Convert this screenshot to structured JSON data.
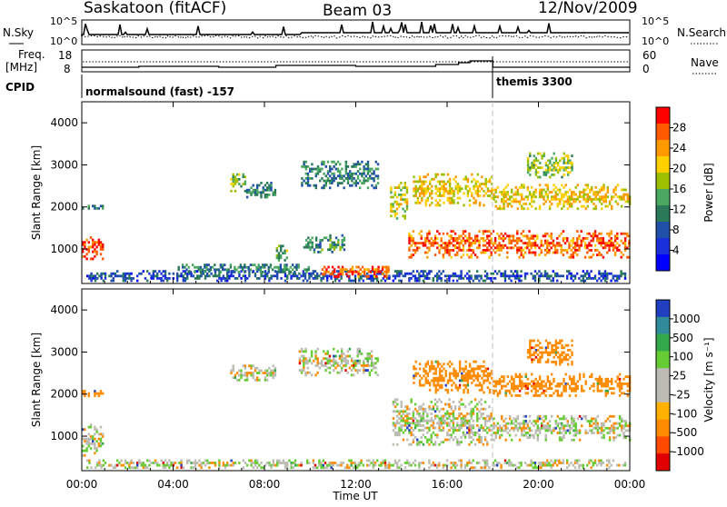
{
  "header": {
    "station": "Saskatoon (fitACF)",
    "beam": "Beam 03",
    "date": "12/Nov/2009"
  },
  "panels": {
    "nsky_label": "N.Sky",
    "nsearch_label": "N.Search",
    "freq_label_1": "Freq.",
    "freq_label_2": "[MHz]",
    "nave_label": "Nave",
    "cpid_label": "CPID",
    "nsky_ticks": [
      "10^5",
      "10^0"
    ],
    "nsearch_ticks": [
      "10^5",
      "10^0"
    ],
    "freq_ticks": [
      "18",
      "8"
    ],
    "nave_ticks": [
      "60",
      "0"
    ],
    "cpid_segments": [
      {
        "label": "normalsound (fast) -157",
        "start_hour": 0,
        "end_hour": 18
      },
      {
        "label": "themis 3300",
        "start_hour": 18,
        "end_hour": 24
      }
    ]
  },
  "colorbars": {
    "power": {
      "label": "Power [dB]",
      "ticks": [
        "28",
        "24",
        "20",
        "16",
        "12",
        "8",
        "4"
      ],
      "colors": [
        "#ff0000",
        "#ff5a00",
        "#ff9900",
        "#ffd000",
        "#9cc000",
        "#4aa860",
        "#2a7a5a",
        "#2050a8",
        "#1a30d8",
        "#0000ff"
      ]
    },
    "velocity": {
      "label": "Velocity [m s⁻¹]",
      "ticks": [
        "1000",
        "500",
        "100",
        "25",
        "-25",
        "-100",
        "-500",
        "-1000"
      ],
      "colors": [
        "#2040c0",
        "#2f8a9a",
        "#33a84a",
        "#66cc33",
        "#bcbcb4",
        "#bcbcb4",
        "#ffb000",
        "#ff8c00",
        "#ff4a00",
        "#e00000"
      ]
    }
  },
  "axes": {
    "ylabel": "Slant Range [km]",
    "xlabel": "Time UT",
    "xticks": [
      "00:00",
      "04:00",
      "08:00",
      "12:00",
      "16:00",
      "20:00",
      "00:00"
    ],
    "yticks": [
      "1000",
      "2000",
      "3000",
      "4000"
    ]
  },
  "chart_data": {
    "type": "heatmap",
    "x_range_hours": [
      0,
      24
    ],
    "y_range_km": [
      180,
      4500
    ],
    "power_patches": [
      {
        "t0": 0.0,
        "t1": 1.0,
        "r0": 750,
        "r1": 1300,
        "level": 28
      },
      {
        "t0": 0.0,
        "t1": 1.0,
        "r0": 1950,
        "r1": 2050,
        "level": 10
      },
      {
        "t0": 0.2,
        "t1": 23.8,
        "r0": 200,
        "r1": 500,
        "level": 6
      },
      {
        "t0": 4.2,
        "t1": 10.0,
        "r0": 450,
        "r1": 650,
        "level": 10
      },
      {
        "t0": 10.5,
        "t1": 13.5,
        "r0": 300,
        "r1": 600,
        "level": 26
      },
      {
        "t0": 6.5,
        "t1": 7.2,
        "r0": 2350,
        "r1": 2800,
        "level": 16
      },
      {
        "t0": 7.2,
        "t1": 8.5,
        "r0": 2200,
        "r1": 2600,
        "level": 10
      },
      {
        "t0": 8.5,
        "t1": 9.0,
        "r0": 700,
        "r1": 1100,
        "level": 14
      },
      {
        "t0": 9.6,
        "t1": 13.0,
        "r0": 2400,
        "r1": 3100,
        "level": 10
      },
      {
        "t0": 9.7,
        "t1": 11.5,
        "r0": 900,
        "r1": 1350,
        "level": 12
      },
      {
        "t0": 13.5,
        "t1": 14.3,
        "r0": 1700,
        "r1": 2600,
        "level": 18
      },
      {
        "t0": 14.3,
        "t1": 24.0,
        "r0": 750,
        "r1": 1450,
        "level": 26
      },
      {
        "t0": 14.5,
        "t1": 18.0,
        "r0": 2000,
        "r1": 2800,
        "level": 20
      },
      {
        "t0": 18.0,
        "t1": 24.0,
        "r0": 1950,
        "r1": 2550,
        "level": 20
      },
      {
        "t0": 19.5,
        "t1": 21.5,
        "r0": 2700,
        "r1": 3300,
        "level": 16
      }
    ],
    "velocity_patches": [
      {
        "t0": 0.0,
        "t1": 1.0,
        "r0": 500,
        "r1": 1300,
        "velocity": 0
      },
      {
        "t0": 0.0,
        "t1": 1.0,
        "r0": 1950,
        "r1": 2100,
        "velocity": -150
      },
      {
        "t0": 0.2,
        "t1": 23.8,
        "r0": 200,
        "r1": 450,
        "velocity": 0
      },
      {
        "t0": 6.5,
        "t1": 8.5,
        "r0": 2300,
        "r1": 2700,
        "velocity": 0
      },
      {
        "t0": 9.5,
        "t1": 13.0,
        "r0": 2400,
        "r1": 3100,
        "velocity": 0
      },
      {
        "t0": 13.6,
        "t1": 18.0,
        "r0": 800,
        "r1": 1900,
        "velocity": 0
      },
      {
        "t0": 14.5,
        "t1": 18.0,
        "r0": 2000,
        "r1": 2800,
        "velocity": -200
      },
      {
        "t0": 18.0,
        "t1": 24.0,
        "r0": 900,
        "r1": 1500,
        "velocity": 0
      },
      {
        "t0": 18.0,
        "t1": 24.0,
        "r0": 1950,
        "r1": 2500,
        "velocity": -150
      },
      {
        "t0": 19.5,
        "t1": 21.5,
        "r0": 2700,
        "r1": 3300,
        "velocity": -150
      }
    ]
  }
}
